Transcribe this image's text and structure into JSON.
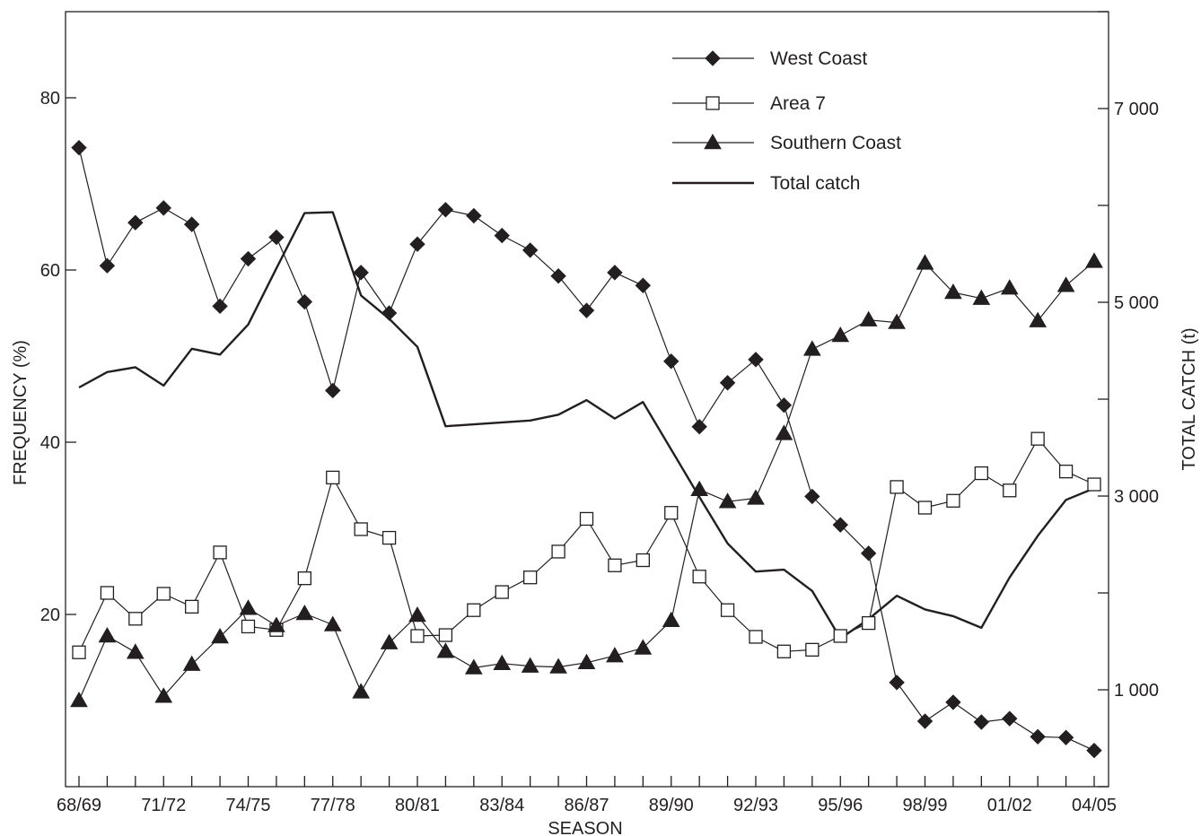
{
  "chart_data": {
    "type": "line",
    "x_label_ticks": [
      "68/69",
      "71/72",
      "74/75",
      "77/78",
      "80/81",
      "83/84",
      "86/87",
      "89/90",
      "92/93",
      "95/96",
      "98/99",
      "01/02",
      "04/05"
    ],
    "seasons": [
      "68/69",
      "69/70",
      "70/71",
      "71/72",
      "72/73",
      "73/74",
      "74/75",
      "75/76",
      "76/77",
      "77/78",
      "78/79",
      "79/80",
      "80/81",
      "81/82",
      "82/83",
      "83/84",
      "84/85",
      "85/86",
      "86/87",
      "87/88",
      "88/89",
      "89/90",
      "90/91",
      "91/92",
      "92/93",
      "93/94",
      "94/95",
      "95/96",
      "96/97",
      "97/98",
      "98/99",
      "99/00",
      "00/01",
      "01/02",
      "02/03",
      "03/04",
      "04/05"
    ],
    "xlabel": "SEASON",
    "ylabel": "FREQUENCY (%)",
    "y2label": "TOTAL CATCH (t)",
    "ylim": [
      0,
      90
    ],
    "y2lim": [
      0,
      8000
    ],
    "yticks": [
      20,
      40,
      60,
      80
    ],
    "y2ticks": [
      1000,
      3000,
      5000,
      7000
    ],
    "y2tick_labels": [
      "1 000",
      "3 000",
      "5 000",
      "7 000"
    ],
    "grid": false,
    "legend_position": "top-right",
    "series": [
      {
        "name": "West Coast",
        "axis": "left",
        "marker": "diamond",
        "color": "#231f20",
        "values": [
          74.2,
          60.5,
          65.5,
          67.2,
          65.3,
          55.8,
          61.3,
          63.8,
          56.3,
          46.0,
          59.7,
          55.0,
          63.0,
          67.0,
          66.3,
          64.0,
          62.3,
          59.3,
          55.3,
          59.7,
          58.2,
          49.4,
          41.8,
          46.9,
          49.6,
          44.3,
          33.7,
          30.4,
          27.1,
          12.1,
          7.6,
          9.8,
          7.5,
          7.9,
          5.8,
          5.7,
          4.2
        ]
      },
      {
        "name": "Area 7",
        "axis": "left",
        "marker": "square-open",
        "color": "#231f20",
        "values": [
          15.6,
          22.5,
          19.5,
          22.4,
          20.9,
          27.2,
          18.6,
          18.2,
          24.2,
          35.9,
          29.9,
          28.9,
          17.5,
          17.6,
          20.5,
          22.6,
          24.3,
          27.3,
          31.1,
          25.7,
          26.3,
          31.8,
          24.4,
          20.5,
          17.4,
          15.7,
          15.9,
          17.5,
          19.0,
          34.8,
          32.4,
          33.2,
          36.4,
          34.4,
          40.4,
          36.6,
          35.1
        ]
      },
      {
        "name": "Southern Coast",
        "axis": "left",
        "marker": "triangle",
        "color": "#231f20",
        "values": [
          10.0,
          17.5,
          15.6,
          10.5,
          14.2,
          17.4,
          20.7,
          18.7,
          20.1,
          18.8,
          11.0,
          16.7,
          19.9,
          15.7,
          13.8,
          14.3,
          14.0,
          13.9,
          14.4,
          15.2,
          16.1,
          19.3,
          34.5,
          33.1,
          33.5,
          41.0,
          50.8,
          52.4,
          54.2,
          53.9,
          60.8,
          57.4,
          56.7,
          57.9,
          54.1,
          58.2,
          61.0
        ]
      },
      {
        "name": "Total catch",
        "axis": "right",
        "marker": "none",
        "color": "#231f20",
        "values": [
          4120,
          4280,
          4330,
          4140,
          4520,
          4460,
          4770,
          5350,
          5920,
          5930,
          5070,
          4830,
          4540,
          3720,
          3740,
          3760,
          3780,
          3840,
          3990,
          3800,
          3970,
          3480,
          2990,
          2510,
          2220,
          2240,
          2020,
          1530,
          1730,
          1970,
          1830,
          1760,
          1640,
          2160,
          2590,
          2960,
          3080
        ]
      }
    ]
  }
}
